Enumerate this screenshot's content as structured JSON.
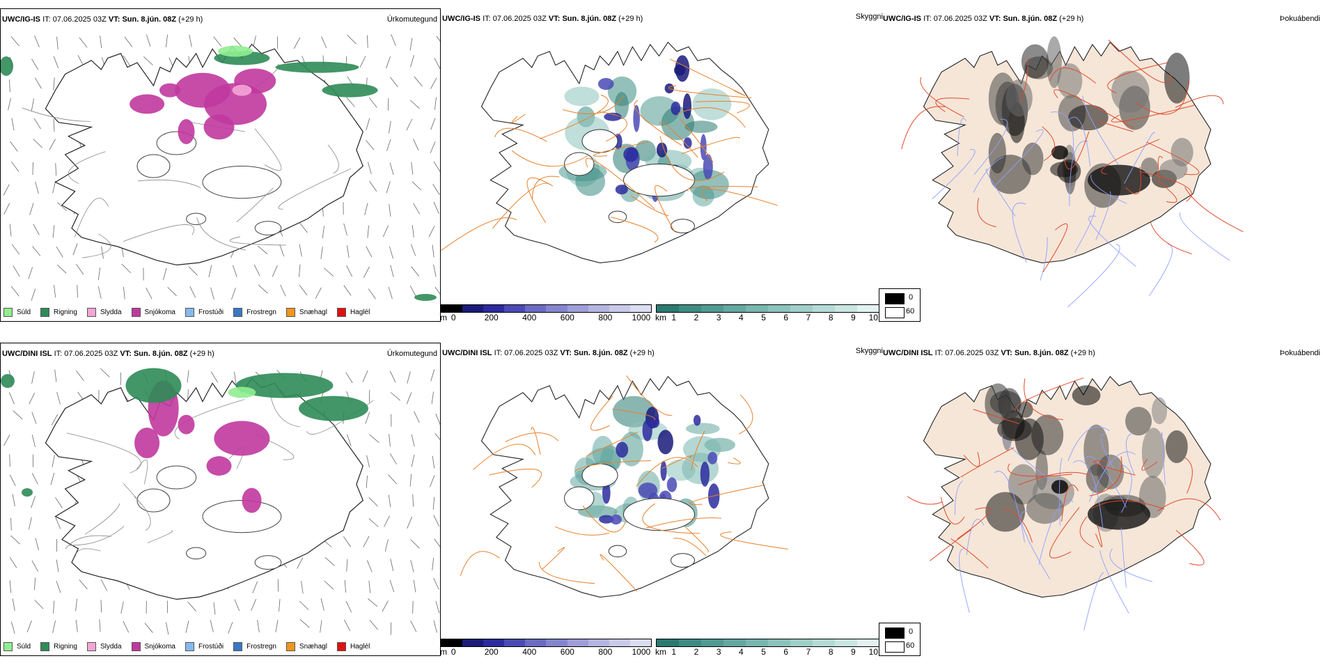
{
  "rows": [
    {
      "model": "UWC/IG-IS",
      "it_label": "IT:",
      "it_value": "07.06.2025 03Z",
      "vt_label": "VT:",
      "vt_value": "Sun. 8.jún. 08Z",
      "lead": "(+29 h)",
      "titles": [
        "Úrkomutegund",
        "Skyggni",
        "Þokuábendi"
      ]
    },
    {
      "model": "UWC/DINI ISL",
      "it_label": "IT:",
      "it_value": "07.06.2025 03Z",
      "vt_label": "VT:",
      "vt_value": "Sun. 8.jún. 08Z",
      "lead": "(+29 h)",
      "titles": [
        "Úrkomutegund",
        "Skyggni",
        "Þokuábendi"
      ]
    }
  ],
  "precip_legend": [
    {
      "label": "Súld",
      "color": "#90ee90"
    },
    {
      "label": "Rigning",
      "color": "#2e8b57"
    },
    {
      "label": "Slydda",
      "color": "#f4a6d7"
    },
    {
      "label": "Snjókoma",
      "color": "#c0399f"
    },
    {
      "label": "Frostúði",
      "color": "#87b9ee"
    },
    {
      "label": "Frostregn",
      "color": "#3b78c4"
    },
    {
      "label": "Snæhagl",
      "color": "#f0961e"
    },
    {
      "label": "Haglél",
      "color": "#e01010"
    }
  ],
  "vis_bar_m": {
    "unit": "m",
    "ticks": [
      "0",
      "200",
      "400",
      "600",
      "800",
      "1000"
    ],
    "colors": [
      "#000000",
      "#1a1a7a",
      "#2b2b9e",
      "#4a4ab5",
      "#6b6bc4",
      "#8585cf",
      "#9e9ed9",
      "#b5b5e2",
      "#c9c9ea",
      "#dcdcf2"
    ]
  },
  "vis_bar_km": {
    "unit": "km",
    "ticks": [
      "1",
      "2",
      "3",
      "4",
      "5",
      "6",
      "7",
      "8",
      "9",
      "10"
    ],
    "colors": [
      "#2a7a72",
      "#3d8c84",
      "#509a92",
      "#64a8a0",
      "#78b6ae",
      "#8cc3bc",
      "#a0cfc9",
      "#b5dbd6",
      "#cae6e2",
      "#e2f2f0"
    ]
  },
  "fog_legend": {
    "low": "0",
    "high": "60"
  },
  "colors": {
    "land": "#f5e6d8",
    "roads": "#e8802a",
    "rivers": "#8fa0ff",
    "coast": "#000000"
  }
}
